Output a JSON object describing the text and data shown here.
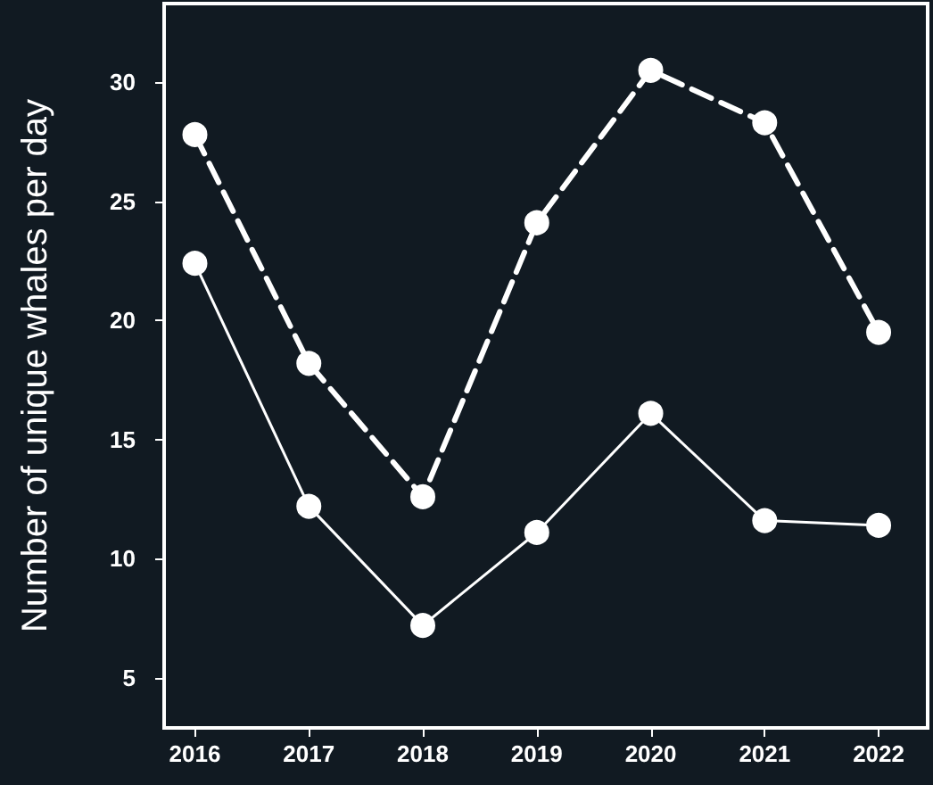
{
  "chart_data": {
    "type": "line",
    "ylabel": "Number of unique whales per day",
    "x": [
      2016,
      2017,
      2018,
      2019,
      2020,
      2021,
      2022
    ],
    "series": [
      {
        "color": "#ffffff",
        "line_style": "dashed",
        "values": [
          27.8,
          18.2,
          12.6,
          24.1,
          30.5,
          28.3,
          19.5
        ]
      },
      {
        "color": "#ffffff",
        "line_style": "solid",
        "values": [
          22.4,
          12.2,
          7.2,
          11.1,
          16.1,
          11.6,
          11.4
        ]
      }
    ],
    "xlim": [
      2015.73,
      2022.43
    ],
    "xticks": [
      2016,
      2017,
      2018,
      2019,
      2020,
      2021,
      2022
    ],
    "ylim": [
      2.9,
      33.3
    ],
    "yticks": [
      5,
      10,
      15,
      20,
      25,
      30
    ],
    "grid": false,
    "marker": "circle"
  }
}
